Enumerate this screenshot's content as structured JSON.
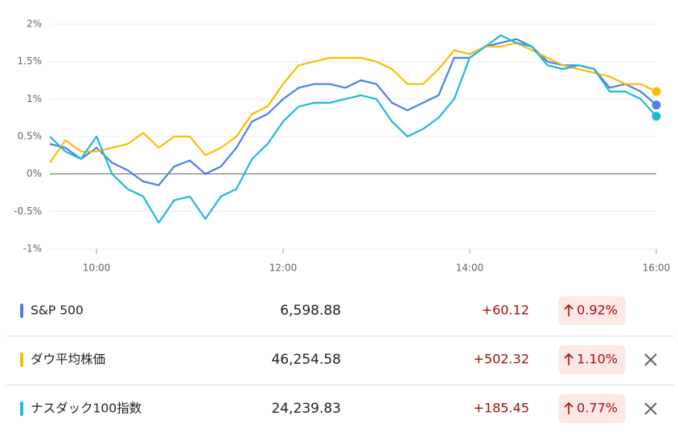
{
  "chart_data": {
    "type": "line",
    "x": [
      570,
      580,
      590,
      600,
      610,
      620,
      630,
      640,
      650,
      660,
      670,
      680,
      690,
      700,
      710,
      720,
      730,
      740,
      750,
      760,
      770,
      780,
      790,
      800,
      810,
      820,
      830,
      840,
      850,
      860,
      870,
      880,
      890,
      900,
      910,
      920,
      930,
      940,
      950,
      960
    ],
    "xlim": [
      570,
      960
    ],
    "xticks": [
      {
        "value": 600,
        "label": "10:00"
      },
      {
        "value": 720,
        "label": "12:00"
      },
      {
        "value": 840,
        "label": "14:00"
      },
      {
        "value": 960,
        "label": "16:00"
      }
    ],
    "ylim": [
      -1,
      2
    ],
    "yticks": [
      {
        "value": -1,
        "label": "-1%"
      },
      {
        "value": -0.5,
        "label": "-0.5%"
      },
      {
        "value": 0,
        "label": "0%"
      },
      {
        "value": 0.5,
        "label": "0.5%"
      },
      {
        "value": 1,
        "label": "1%"
      },
      {
        "value": 1.5,
        "label": "1.5%"
      },
      {
        "value": 2,
        "label": "2%"
      }
    ],
    "grid": true,
    "series": [
      {
        "name": "S&P 500",
        "color": "#4e7fe8",
        "values": [
          0.4,
          0.35,
          0.2,
          0.35,
          0.15,
          0.05,
          -0.1,
          -0.15,
          0.1,
          0.18,
          0.0,
          0.1,
          0.35,
          0.7,
          0.8,
          1.0,
          1.15,
          1.2,
          1.2,
          1.15,
          1.25,
          1.2,
          0.95,
          0.85,
          0.95,
          1.05,
          1.55,
          1.55,
          1.7,
          1.75,
          1.8,
          1.7,
          1.5,
          1.45,
          1.45,
          1.4,
          1.15,
          1.2,
          1.1,
          0.92
        ]
      },
      {
        "name": "ダウ平均株価",
        "color": "#fbbc04",
        "values": [
          0.15,
          0.45,
          0.3,
          0.3,
          0.35,
          0.4,
          0.55,
          0.35,
          0.5,
          0.5,
          0.25,
          0.35,
          0.5,
          0.8,
          0.9,
          1.2,
          1.45,
          1.5,
          1.55,
          1.55,
          1.55,
          1.5,
          1.4,
          1.2,
          1.2,
          1.4,
          1.65,
          1.6,
          1.7,
          1.7,
          1.75,
          1.65,
          1.55,
          1.45,
          1.4,
          1.35,
          1.3,
          1.2,
          1.2,
          1.1
        ]
      },
      {
        "name": "ナスダック100指数",
        "color": "#1fbad6",
        "values": [
          0.5,
          0.3,
          0.2,
          0.5,
          0.0,
          -0.2,
          -0.3,
          -0.65,
          -0.35,
          -0.3,
          -0.6,
          -0.3,
          -0.2,
          0.2,
          0.4,
          0.7,
          0.9,
          0.95,
          0.95,
          1.0,
          1.05,
          1.0,
          0.7,
          0.5,
          0.6,
          0.75,
          1.0,
          1.55,
          1.7,
          1.85,
          1.75,
          1.7,
          1.45,
          1.4,
          1.45,
          1.4,
          1.1,
          1.1,
          1.0,
          0.77
        ]
      }
    ]
  },
  "table": {
    "rows": [
      {
        "name": "S&P 500",
        "price": "6,598.88",
        "change": "+60.12",
        "percent": "0.92%"
      },
      {
        "name": "ダウ平均株価",
        "price": "46,254.58",
        "change": "+502.32",
        "percent": "1.10%"
      },
      {
        "name": "ナスダック100指数",
        "price": "24,239.83",
        "change": "+185.45",
        "percent": "0.77%"
      }
    ]
  }
}
